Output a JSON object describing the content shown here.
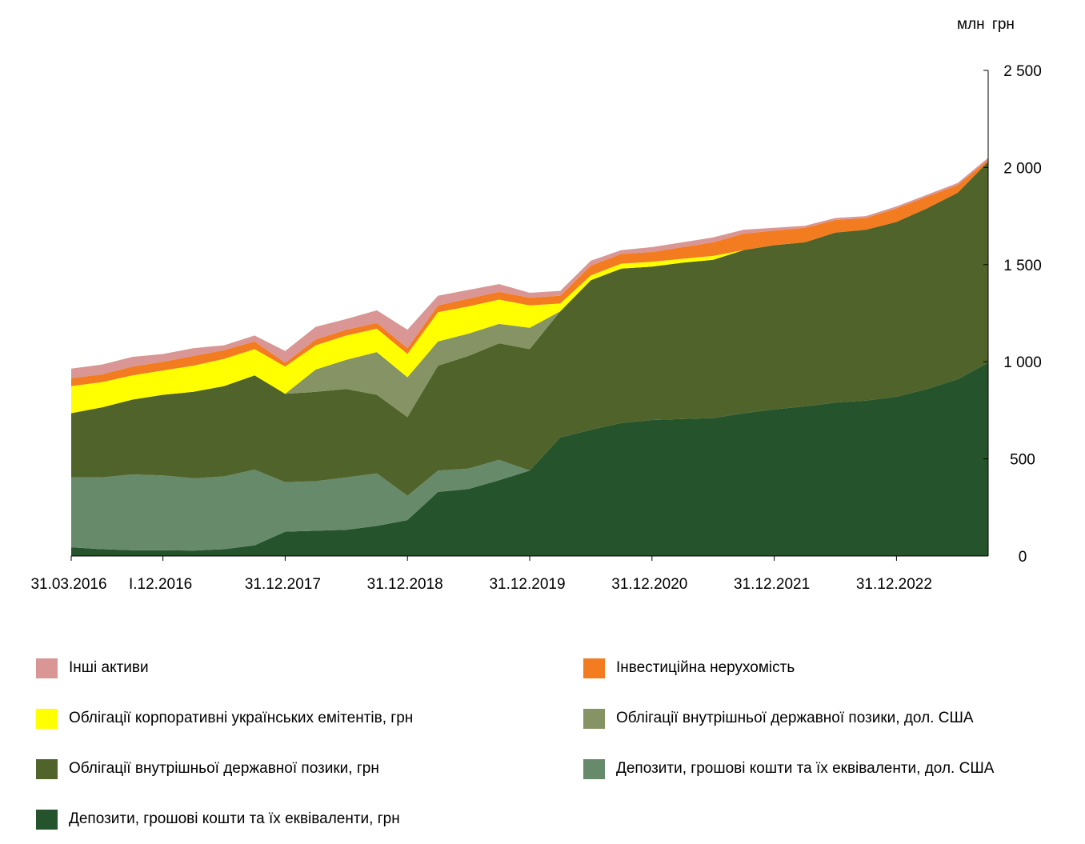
{
  "unit_label": "млн  грн",
  "chart_data": {
    "type": "area",
    "stacked": true,
    "title": "",
    "xlabel": "",
    "ylabel": "млн  грн",
    "ylim": [
      0,
      2500
    ],
    "yticks": [
      0,
      500,
      1000,
      1500,
      2000,
      2500
    ],
    "ytick_labels": [
      "0",
      "500",
      "1 000",
      "1 500",
      "2 000",
      "2 500"
    ],
    "y_axis_position": "right",
    "grid": false,
    "legend_position": "bottom",
    "x": [
      "31.03.2016",
      "30.06.2016",
      "30.09.2016",
      "31.12.2016",
      "31.03.2017",
      "30.06.2017",
      "30.09.2017",
      "31.12.2017",
      "31.03.2018",
      "30.06.2018",
      "30.09.2018",
      "31.12.2018",
      "31.03.2019",
      "30.06.2019",
      "30.09.2019",
      "31.12.2019",
      "31.03.2020",
      "30.06.2020",
      "30.09.2020",
      "31.12.2020",
      "31.03.2021",
      "30.06.2021",
      "30.09.2021",
      "31.12.2021",
      "31.03.2022",
      "30.06.2022",
      "30.09.2022",
      "31.12.2022",
      "31.03.2023",
      "30.06.2023",
      "30.09.2023"
    ],
    "x_tick_labels": [
      {
        "x": "31.03.2016",
        "label": "31.03.2016"
      },
      {
        "x": "31.12.2016",
        "label": "I.12.2016"
      },
      {
        "x": "31.12.2017",
        "label": "31.12.2017"
      },
      {
        "x": "31.12.2018",
        "label": "31.12.2018"
      },
      {
        "x": "31.12.2019",
        "label": "31.12.2019"
      },
      {
        "x": "31.12.2020",
        "label": "31.12.2020"
      },
      {
        "x": "31.12.2021",
        "label": "31.12.2021"
      },
      {
        "x": "31.12.2022",
        "label": "31.12.2022"
      }
    ],
    "series": [
      {
        "name": "Депозити, грошові кошти та їх еквіваленти, грн",
        "color": "#24532C",
        "values": [
          45,
          35,
          30,
          30,
          28,
          35,
          55,
          125,
          130,
          135,
          155,
          185,
          330,
          345,
          390,
          440,
          610,
          650,
          685,
          700,
          705,
          710,
          735,
          755,
          770,
          790,
          800,
          820,
          860,
          910,
          995
        ]
      },
      {
        "name": "Депозити, грошові кошти та їх еквіваленти, дол. США",
        "color": "#678A6A",
        "values": [
          360,
          370,
          390,
          385,
          372,
          375,
          390,
          255,
          255,
          270,
          270,
          125,
          110,
          105,
          105,
          0,
          0,
          0,
          0,
          0,
          0,
          0,
          0,
          0,
          0,
          0,
          0,
          0,
          0,
          0,
          0
        ]
      },
      {
        "name": "Облігації внутрішньої державної позики, грн",
        "color": "#50632A",
        "values": [
          330,
          360,
          385,
          415,
          445,
          465,
          485,
          455,
          460,
          455,
          405,
          405,
          540,
          580,
          600,
          625,
          650,
          770,
          795,
          790,
          805,
          815,
          840,
          845,
          845,
          875,
          880,
          900,
          930,
          960,
          1035
        ]
      },
      {
        "name": "Облігації внутрішньої державної позики, дол. США",
        "color": "#869465",
        "values": [
          0,
          0,
          0,
          0,
          0,
          0,
          0,
          0,
          115,
          150,
          220,
          205,
          125,
          115,
          100,
          110,
          0,
          0,
          0,
          0,
          0,
          0,
          0,
          0,
          0,
          0,
          0,
          0,
          0,
          0,
          0
        ]
      },
      {
        "name": "Облігації корпоративні українських емітентів, грн",
        "color": "#FFFF00",
        "values": [
          140,
          130,
          125,
          125,
          135,
          140,
          135,
          140,
          125,
          125,
          120,
          120,
          150,
          140,
          125,
          115,
          40,
          25,
          25,
          25,
          20,
          20,
          0,
          0,
          0,
          0,
          0,
          0,
          0,
          0,
          0
        ]
      },
      {
        "name": "Інвестиційна нерухомість",
        "color": "#F37C20",
        "values": [
          40,
          40,
          45,
          45,
          50,
          45,
          40,
          20,
          30,
          30,
          30,
          30,
          35,
          40,
          40,
          40,
          40,
          50,
          50,
          50,
          60,
          70,
          85,
          75,
          75,
          65,
          60,
          70,
          60,
          40,
          10
        ]
      },
      {
        "name": "Інші активи",
        "color": "#D99694",
        "values": [
          50,
          50,
          50,
          40,
          40,
          25,
          30,
          60,
          65,
          55,
          65,
          95,
          50,
          45,
          40,
          25,
          25,
          25,
          20,
          25,
          25,
          25,
          20,
          15,
          10,
          10,
          10,
          10,
          10,
          10,
          10
        ]
      }
    ]
  },
  "legend": [
    {
      "label": "Інші активи",
      "color": "#D99694"
    },
    {
      "label": "Інвестиційна нерухомість",
      "color": "#F37C20"
    },
    {
      "label": "Облігації корпоративні  українських  емітентів, грн",
      "color": "#FFFF00"
    },
    {
      "label": "Облігації  внутрішньої  державної позики, дол. США",
      "color": "#869465"
    },
    {
      "label": "Облігації  внутрішньої  державної  позики,  грн",
      "color": "#50632A"
    },
    {
      "label": "Депозити,  грошові кошти  та  їх еквіваленти,  дол. США",
      "color": "#678A6A"
    },
    {
      "label": "Депозити,  грошові  кошти  та  їх  еквіваленти,  грн",
      "color": "#24532C"
    }
  ]
}
